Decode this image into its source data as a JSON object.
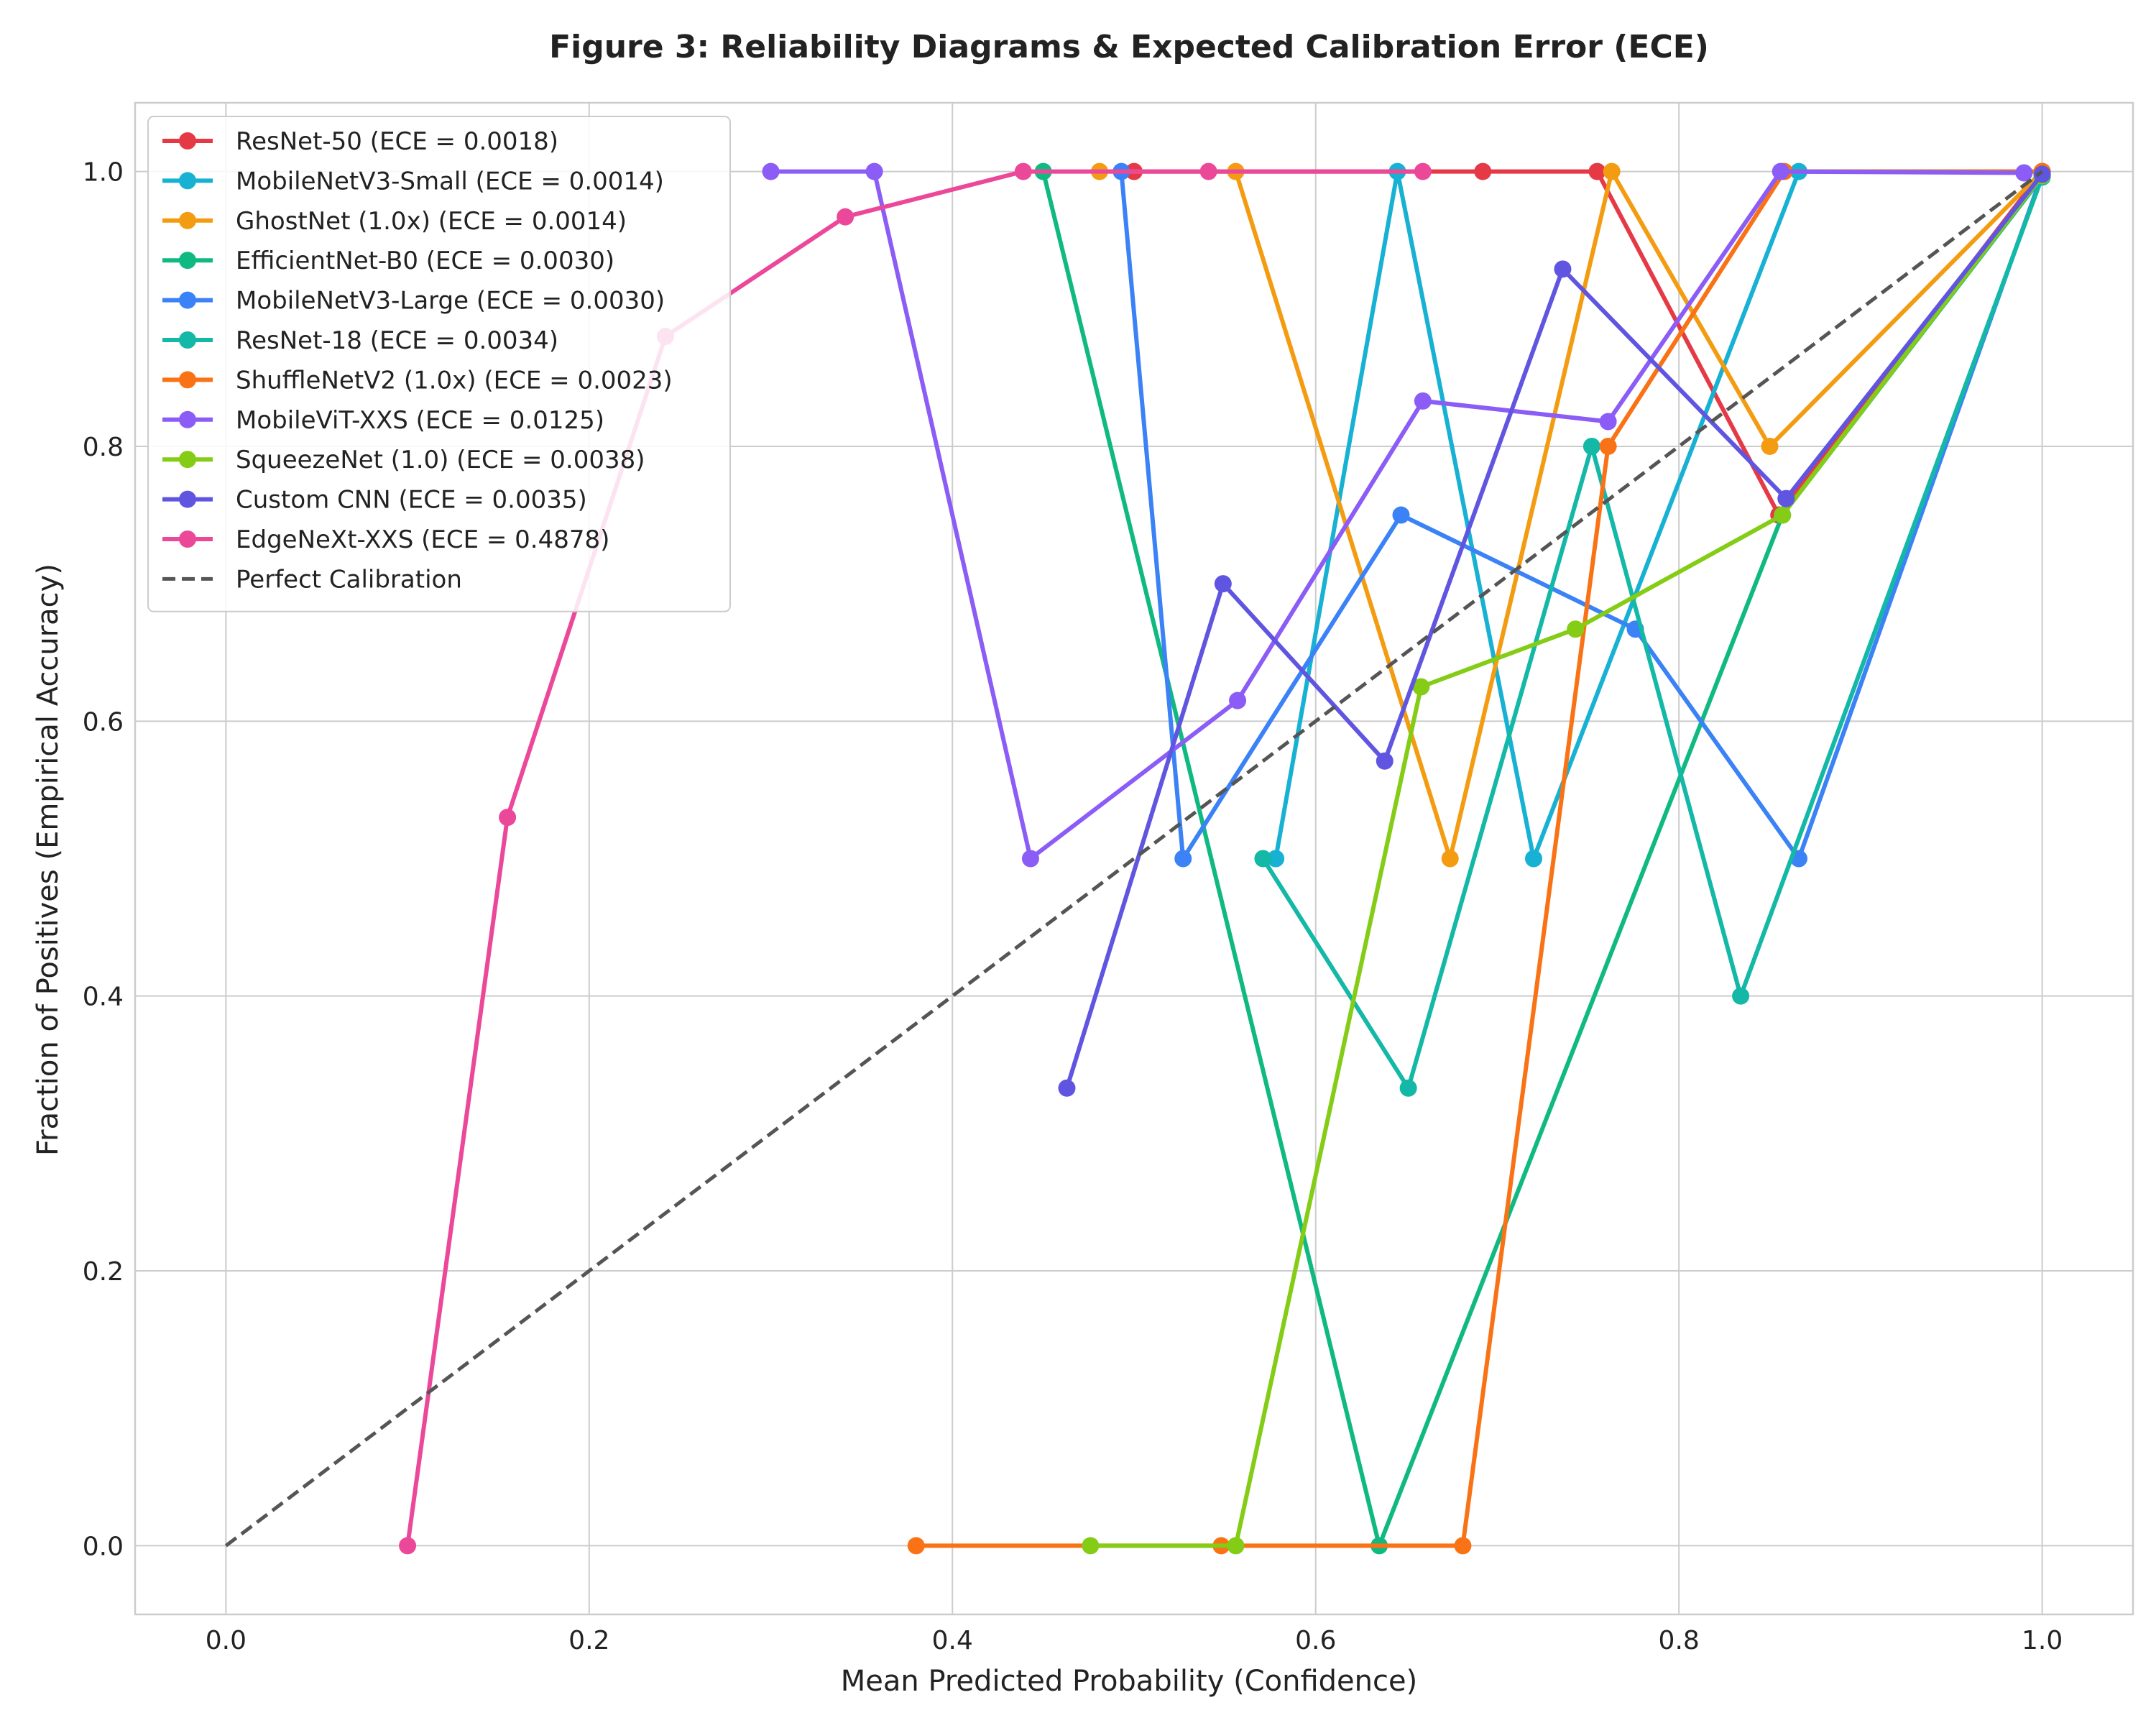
{
  "chart_data": {
    "type": "line",
    "title": "Figure 3: Reliability Diagrams & Expected Calibration Error (ECE)",
    "xlabel": "Mean Predicted Probability (Confidence)",
    "ylabel": "Fraction of Positives (Empirical Accuracy)",
    "xlim": [
      -0.05,
      1.05
    ],
    "ylim": [
      -0.05,
      1.05
    ],
    "xticks": [
      0.0,
      0.2,
      0.4,
      0.6,
      0.8,
      1.0
    ],
    "yticks": [
      0.0,
      0.2,
      0.4,
      0.6,
      0.8,
      1.0
    ],
    "xtick_labels": [
      "0.0",
      "0.2",
      "0.4",
      "0.6",
      "0.8",
      "1.0"
    ],
    "ytick_labels": [
      "0.0",
      "0.2",
      "0.4",
      "0.6",
      "0.8",
      "1.0"
    ],
    "grid": true,
    "legend_position": "top-left",
    "series": [
      {
        "name": "ResNet-50 (ECE = 0.0018)",
        "color": "#e63946",
        "points": [
          [
            0.5,
            1.0
          ],
          [
            0.692,
            1.0
          ],
          [
            0.755,
            1.0
          ],
          [
            0.855,
            0.75
          ],
          [
            1.0,
            1.0
          ]
        ]
      },
      {
        "name": "MobileNetV3-Small (ECE = 0.0014)",
        "color": "#17b1d3",
        "points": [
          [
            0.578,
            0.5
          ],
          [
            0.645,
            1.0
          ],
          [
            0.72,
            0.5
          ],
          [
            0.866,
            1.0
          ],
          [
            1.0,
            1.0
          ]
        ]
      },
      {
        "name": "GhostNet (1.0x) (ECE = 0.0014)",
        "color": "#f39c12",
        "points": [
          [
            0.481,
            1.0
          ],
          [
            0.556,
            1.0
          ],
          [
            0.674,
            0.5
          ],
          [
            0.763,
            1.0
          ],
          [
            0.85,
            0.8
          ],
          [
            1.0,
            1.0
          ]
        ]
      },
      {
        "name": "EfficientNet-B0 (ECE = 0.0030)",
        "color": "#10b981",
        "points": [
          [
            0.45,
            1.0
          ],
          [
            0.635,
            0.0
          ],
          [
            0.857,
            0.75
          ],
          [
            1.0,
            0.996
          ]
        ]
      },
      {
        "name": "MobileNetV3-Large (ECE = 0.0030)",
        "color": "#3b82f6",
        "points": [
          [
            0.493,
            1.0
          ],
          [
            0.527,
            0.5
          ],
          [
            0.647,
            0.75
          ],
          [
            0.776,
            0.667
          ],
          [
            0.866,
            0.5
          ],
          [
            1.0,
            0.998
          ]
        ]
      },
      {
        "name": "ResNet-18 (ECE = 0.0034)",
        "color": "#14b8a6",
        "points": [
          [
            0.571,
            0.5
          ],
          [
            0.651,
            0.333
          ],
          [
            0.752,
            0.8
          ],
          [
            0.834,
            0.4
          ],
          [
            1.0,
            0.996
          ]
        ]
      },
      {
        "name": "ShuffleNetV2 (1.0x) (ECE = 0.0023)",
        "color": "#f97316",
        "points": [
          [
            0.38,
            0.0
          ],
          [
            0.548,
            0.0
          ],
          [
            0.681,
            0.0
          ],
          [
            0.761,
            0.8
          ],
          [
            0.858,
            1.0
          ],
          [
            1.0,
            1.0
          ]
        ]
      },
      {
        "name": "MobileViT-XXS (ECE = 0.0125)",
        "color": "#8b5cf6",
        "points": [
          [
            0.3,
            1.0
          ],
          [
            0.357,
            1.0
          ],
          [
            0.443,
            0.5
          ],
          [
            0.557,
            0.615
          ],
          [
            0.659,
            0.833
          ],
          [
            0.761,
            0.818
          ],
          [
            0.856,
            1.0
          ],
          [
            0.99,
            0.999
          ]
        ]
      },
      {
        "name": "SqueezeNet (1.0) (ECE = 0.0038)",
        "color": "#84cc16",
        "points": [
          [
            0.476,
            0.0
          ],
          [
            0.556,
            0.0
          ],
          [
            0.658,
            0.625
          ],
          [
            0.743,
            0.667
          ],
          [
            0.857,
            0.75
          ],
          [
            1.0,
            0.997
          ]
        ]
      },
      {
        "name": "Custom CNN (ECE = 0.0035)",
        "color": "#6055e0",
        "points": [
          [
            0.463,
            0.333
          ],
          [
            0.549,
            0.7
          ],
          [
            0.638,
            0.571
          ],
          [
            0.736,
            0.929
          ],
          [
            0.859,
            0.762
          ],
          [
            1.0,
            0.998
          ]
        ]
      },
      {
        "name": "EdgeNeXt-XXS (ECE = 0.4878)",
        "color": "#ec4899",
        "points": [
          [
            0.1,
            0.0
          ],
          [
            0.155,
            0.53
          ],
          [
            0.242,
            0.88
          ],
          [
            0.341,
            0.967
          ],
          [
            0.439,
            1.0
          ],
          [
            0.541,
            1.0
          ],
          [
            0.659,
            1.0
          ]
        ]
      },
      {
        "name": "Perfect Calibration",
        "color": "#555555",
        "dashed": true,
        "markers": false,
        "points": [
          [
            0.0,
            0.0
          ],
          [
            1.0,
            1.0
          ]
        ]
      }
    ]
  }
}
